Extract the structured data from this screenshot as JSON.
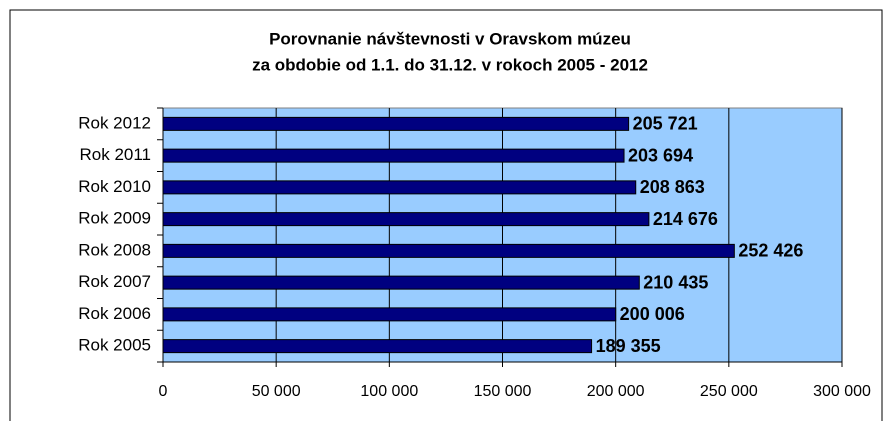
{
  "chart_data": {
    "type": "bar",
    "orientation": "horizontal",
    "title": [
      "Porovnanie návštevnosti v Oravskom múzeu",
      "za obdobie od 1.1. do 31.12. v rokoch 2005 - 2012"
    ],
    "categories": [
      "Rok 2005",
      "Rok 2006",
      "Rok 2007",
      "Rok 2008",
      "Rok 2009",
      "Rok 2010",
      "Rok 2011",
      "Rok 2012"
    ],
    "values": [
      189355,
      200006,
      210435,
      252426,
      214676,
      208863,
      203694,
      205721
    ],
    "value_labels": [
      "189 355",
      "200 006",
      "210 435",
      "252 426",
      "214 676",
      "208 863",
      "203 694",
      "205 721"
    ],
    "color": "#000080",
    "plot_background": "#99ccff",
    "xlim": [
      0,
      300000
    ],
    "xticks": [
      0,
      {
        "value": 50000,
        "label": "50 000"
      },
      {
        "value": 100000,
        "label": "100 000"
      },
      {
        "value": 150000,
        "label": "150 000"
      },
      {
        "value": 200000,
        "label": "200 000"
      },
      {
        "value": 250000,
        "label": "250 000"
      },
      {
        "value": 300000,
        "label": "300 000"
      }
    ],
    "grid": true
  }
}
